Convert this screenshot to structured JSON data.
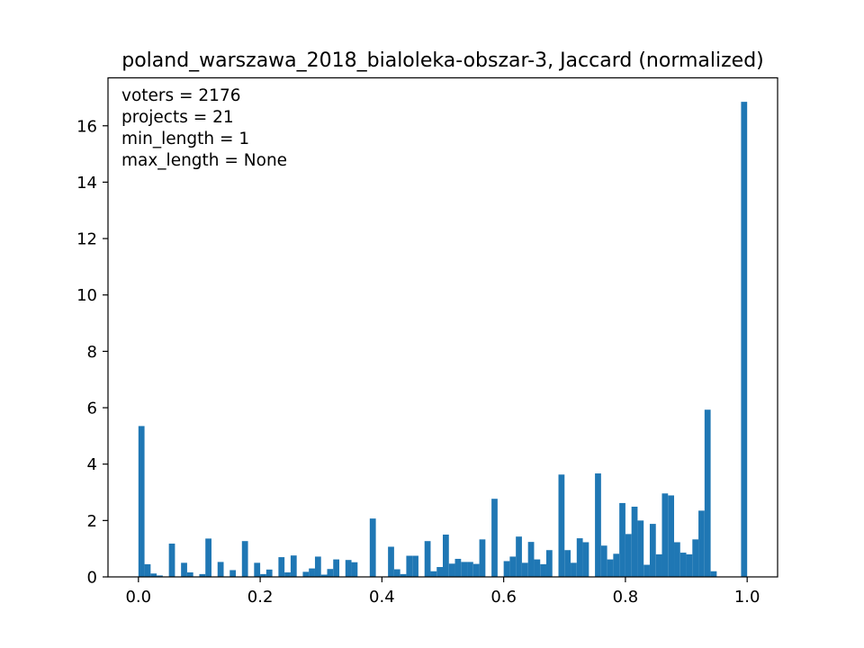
{
  "chart_data": {
    "type": "bar",
    "title": "poland_warszawa_2018_bialoleka-obszar-3, Jaccard (normalized)",
    "xlabel": "",
    "ylabel": "",
    "xlim": [
      -0.05,
      1.05
    ],
    "ylim": [
      0,
      17.7
    ],
    "bin_width": 0.01,
    "color": "#1f77b4",
    "x_ticks": [
      0.0,
      0.2,
      0.4,
      0.6,
      0.8,
      1.0
    ],
    "x_tick_labels": [
      "0.0",
      "0.2",
      "0.4",
      "0.6",
      "0.8",
      "1.0"
    ],
    "y_ticks": [
      0,
      2,
      4,
      6,
      8,
      10,
      12,
      14,
      16
    ],
    "y_tick_labels": [
      "0",
      "2",
      "4",
      "6",
      "8",
      "10",
      "12",
      "14",
      "16"
    ],
    "annotations": [
      "voters = 2176",
      "projects = 21",
      "min_length = 1",
      "max_length = None"
    ],
    "bins": [
      {
        "x": 0.0,
        "y": 5.35
      },
      {
        "x": 0.01,
        "y": 0.45
      },
      {
        "x": 0.02,
        "y": 0.12
      },
      {
        "x": 0.03,
        "y": 0.05
      },
      {
        "x": 0.05,
        "y": 1.18
      },
      {
        "x": 0.07,
        "y": 0.5
      },
      {
        "x": 0.08,
        "y": 0.16
      },
      {
        "x": 0.1,
        "y": 0.1
      },
      {
        "x": 0.11,
        "y": 1.36
      },
      {
        "x": 0.13,
        "y": 0.53
      },
      {
        "x": 0.15,
        "y": 0.24
      },
      {
        "x": 0.17,
        "y": 1.27
      },
      {
        "x": 0.19,
        "y": 0.5
      },
      {
        "x": 0.2,
        "y": 0.1
      },
      {
        "x": 0.21,
        "y": 0.26
      },
      {
        "x": 0.23,
        "y": 0.7
      },
      {
        "x": 0.24,
        "y": 0.16
      },
      {
        "x": 0.25,
        "y": 0.76
      },
      {
        "x": 0.27,
        "y": 0.18
      },
      {
        "x": 0.28,
        "y": 0.3
      },
      {
        "x": 0.29,
        "y": 0.72
      },
      {
        "x": 0.3,
        "y": 0.08
      },
      {
        "x": 0.31,
        "y": 0.28
      },
      {
        "x": 0.32,
        "y": 0.62
      },
      {
        "x": 0.34,
        "y": 0.6
      },
      {
        "x": 0.35,
        "y": 0.52
      },
      {
        "x": 0.38,
        "y": 2.07
      },
      {
        "x": 0.41,
        "y": 1.07
      },
      {
        "x": 0.42,
        "y": 0.27
      },
      {
        "x": 0.43,
        "y": 0.1
      },
      {
        "x": 0.44,
        "y": 0.75
      },
      {
        "x": 0.45,
        "y": 0.75
      },
      {
        "x": 0.47,
        "y": 1.27
      },
      {
        "x": 0.48,
        "y": 0.2
      },
      {
        "x": 0.49,
        "y": 0.35
      },
      {
        "x": 0.5,
        "y": 1.5
      },
      {
        "x": 0.51,
        "y": 0.47
      },
      {
        "x": 0.52,
        "y": 0.64
      },
      {
        "x": 0.53,
        "y": 0.53
      },
      {
        "x": 0.54,
        "y": 0.53
      },
      {
        "x": 0.55,
        "y": 0.46
      },
      {
        "x": 0.56,
        "y": 1.33
      },
      {
        "x": 0.58,
        "y": 2.77
      },
      {
        "x": 0.6,
        "y": 0.56
      },
      {
        "x": 0.61,
        "y": 0.72
      },
      {
        "x": 0.62,
        "y": 1.43
      },
      {
        "x": 0.63,
        "y": 0.5
      },
      {
        "x": 0.64,
        "y": 1.24
      },
      {
        "x": 0.65,
        "y": 0.62
      },
      {
        "x": 0.66,
        "y": 0.45
      },
      {
        "x": 0.67,
        "y": 0.95
      },
      {
        "x": 0.69,
        "y": 3.63
      },
      {
        "x": 0.7,
        "y": 0.95
      },
      {
        "x": 0.71,
        "y": 0.5
      },
      {
        "x": 0.72,
        "y": 1.37
      },
      {
        "x": 0.73,
        "y": 1.23
      },
      {
        "x": 0.75,
        "y": 3.67
      },
      {
        "x": 0.76,
        "y": 1.11
      },
      {
        "x": 0.77,
        "y": 0.62
      },
      {
        "x": 0.78,
        "y": 0.82
      },
      {
        "x": 0.79,
        "y": 2.62
      },
      {
        "x": 0.8,
        "y": 1.52
      },
      {
        "x": 0.81,
        "y": 2.49
      },
      {
        "x": 0.82,
        "y": 2.0
      },
      {
        "x": 0.83,
        "y": 0.43
      },
      {
        "x": 0.84,
        "y": 1.88
      },
      {
        "x": 0.85,
        "y": 0.8
      },
      {
        "x": 0.86,
        "y": 2.96
      },
      {
        "x": 0.87,
        "y": 2.89
      },
      {
        "x": 0.88,
        "y": 1.23
      },
      {
        "x": 0.89,
        "y": 0.86
      },
      {
        "x": 0.9,
        "y": 0.8
      },
      {
        "x": 0.91,
        "y": 1.33
      },
      {
        "x": 0.92,
        "y": 2.35
      },
      {
        "x": 0.93,
        "y": 5.93
      },
      {
        "x": 0.94,
        "y": 0.2
      },
      {
        "x": 0.99,
        "y": 16.85
      }
    ]
  }
}
